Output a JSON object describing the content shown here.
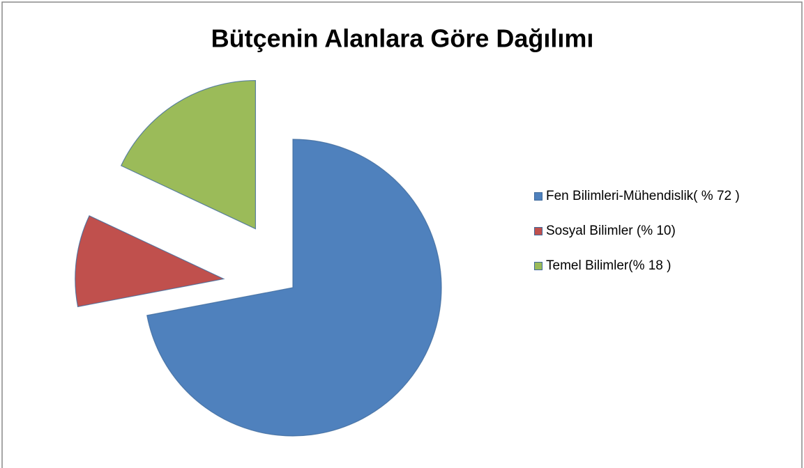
{
  "chart_data": {
    "type": "pie",
    "title": "Bütçenin Alanlara Göre Dağılımı",
    "categories": [
      "Fen Bilimleri-Mühendislik( % 72 )",
      "Sosyal Bilimler (% 10)",
      "Temel Bilimler(% 18 )"
    ],
    "values": [
      72,
      10,
      18
    ],
    "colors": [
      "#4f81bd",
      "#c0504d",
      "#9bbb59"
    ],
    "legend": "right"
  }
}
